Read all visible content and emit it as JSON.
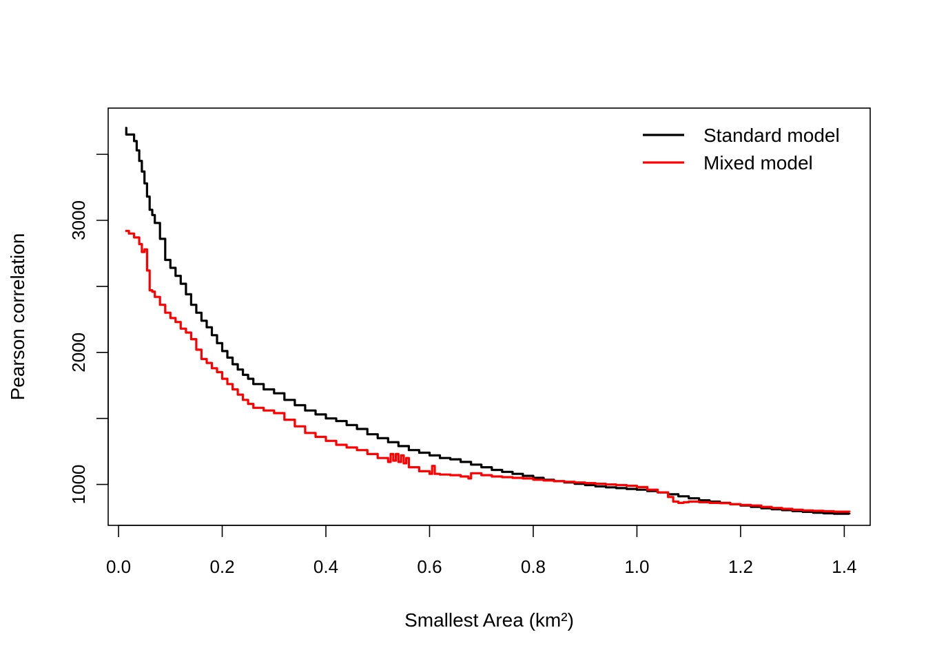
{
  "chart_data": {
    "type": "line",
    "title": "",
    "xlabel": "Smallest Area (km²)",
    "ylabel": "Pearson correlation",
    "xlim": [
      -0.02,
      1.45
    ],
    "ylim": [
      690,
      3850
    ],
    "x_ticks": [
      0.0,
      0.2,
      0.4,
      0.6,
      0.8,
      1.0,
      1.2,
      1.4
    ],
    "x_tick_labels": [
      "0.0",
      "0.2",
      "0.4",
      "0.6",
      "0.8",
      "1.0",
      "1.2",
      "1.4"
    ],
    "y_ticks": [
      1000,
      1500,
      2000,
      2500,
      3000,
      3500
    ],
    "y_tick_labels": [
      "1000",
      "",
      "2000",
      "",
      "3000",
      ""
    ],
    "grid": false,
    "legend_position": "top-right",
    "series": [
      {
        "name": "Standard model",
        "color": "#000000",
        "x": [
          0.013,
          0.015,
          0.03,
          0.035,
          0.04,
          0.045,
          0.05,
          0.055,
          0.06,
          0.065,
          0.07,
          0.08,
          0.09,
          0.1,
          0.11,
          0.12,
          0.13,
          0.14,
          0.15,
          0.16,
          0.17,
          0.18,
          0.19,
          0.2,
          0.21,
          0.22,
          0.23,
          0.24,
          0.25,
          0.26,
          0.28,
          0.3,
          0.32,
          0.34,
          0.36,
          0.38,
          0.4,
          0.42,
          0.44,
          0.46,
          0.48,
          0.5,
          0.52,
          0.54,
          0.56,
          0.58,
          0.6,
          0.62,
          0.64,
          0.66,
          0.68,
          0.7,
          0.72,
          0.74,
          0.76,
          0.78,
          0.8,
          0.82,
          0.84,
          0.86,
          0.88,
          0.9,
          0.92,
          0.94,
          0.96,
          0.98,
          1.0,
          1.02,
          1.04,
          1.06,
          1.08,
          1.1,
          1.12,
          1.14,
          1.16,
          1.18,
          1.2,
          1.22,
          1.24,
          1.26,
          1.28,
          1.3,
          1.32,
          1.34,
          1.36,
          1.38,
          1.41
        ],
        "y": [
          3700,
          3650,
          3600,
          3530,
          3450,
          3370,
          3280,
          3180,
          3080,
          3040,
          2980,
          2860,
          2700,
          2640,
          2580,
          2520,
          2440,
          2360,
          2300,
          2240,
          2190,
          2130,
          2070,
          2010,
          1960,
          1910,
          1870,
          1830,
          1800,
          1760,
          1720,
          1690,
          1640,
          1600,
          1560,
          1530,
          1500,
          1480,
          1450,
          1420,
          1380,
          1350,
          1320,
          1290,
          1260,
          1240,
          1220,
          1200,
          1190,
          1170,
          1150,
          1130,
          1110,
          1095,
          1080,
          1065,
          1050,
          1035,
          1025,
          1015,
          1005,
          995,
          985,
          978,
          972,
          966,
          960,
          950,
          940,
          925,
          910,
          895,
          880,
          870,
          860,
          850,
          840,
          830,
          820,
          812,
          805,
          798,
          792,
          786,
          781,
          778,
          775
        ]
      },
      {
        "name": "Mixed model",
        "color": "#ff0000",
        "x": [
          0.013,
          0.02,
          0.03,
          0.04,
          0.045,
          0.05,
          0.055,
          0.06,
          0.065,
          0.07,
          0.08,
          0.09,
          0.1,
          0.11,
          0.12,
          0.13,
          0.14,
          0.15,
          0.16,
          0.17,
          0.18,
          0.19,
          0.2,
          0.21,
          0.22,
          0.23,
          0.24,
          0.25,
          0.26,
          0.28,
          0.3,
          0.32,
          0.34,
          0.36,
          0.38,
          0.4,
          0.42,
          0.44,
          0.46,
          0.48,
          0.5,
          0.52,
          0.525,
          0.53,
          0.535,
          0.54,
          0.545,
          0.55,
          0.555,
          0.56,
          0.58,
          0.6,
          0.605,
          0.61,
          0.62,
          0.64,
          0.66,
          0.675,
          0.68,
          0.7,
          0.72,
          0.74,
          0.76,
          0.78,
          0.8,
          0.82,
          0.84,
          0.86,
          0.88,
          0.9,
          0.92,
          0.94,
          0.96,
          0.98,
          1.0,
          1.02,
          1.04,
          1.06,
          1.07,
          1.08,
          1.09,
          1.1,
          1.12,
          1.14,
          1.16,
          1.18,
          1.2,
          1.22,
          1.24,
          1.26,
          1.28,
          1.3,
          1.32,
          1.34,
          1.36,
          1.38,
          1.41
        ],
        "y": [
          2920,
          2900,
          2870,
          2820,
          2760,
          2780,
          2620,
          2470,
          2460,
          2420,
          2360,
          2300,
          2260,
          2230,
          2180,
          2150,
          2100,
          2020,
          1950,
          1920,
          1880,
          1850,
          1800,
          1760,
          1720,
          1680,
          1640,
          1610,
          1580,
          1560,
          1540,
          1490,
          1440,
          1390,
          1360,
          1330,
          1300,
          1280,
          1260,
          1230,
          1200,
          1170,
          1230,
          1180,
          1230,
          1170,
          1220,
          1160,
          1200,
          1130,
          1100,
          1080,
          1140,
          1080,
          1075,
          1070,
          1060,
          1045,
          1085,
          1070,
          1060,
          1055,
          1050,
          1045,
          1035,
          1030,
          1025,
          1020,
          1015,
          1010,
          1005,
          1000,
          995,
          990,
          980,
          960,
          940,
          905,
          870,
          860,
          865,
          870,
          865,
          860,
          858,
          850,
          845,
          840,
          830,
          822,
          815,
          808,
          803,
          800,
          797,
          794,
          790
        ]
      }
    ]
  }
}
